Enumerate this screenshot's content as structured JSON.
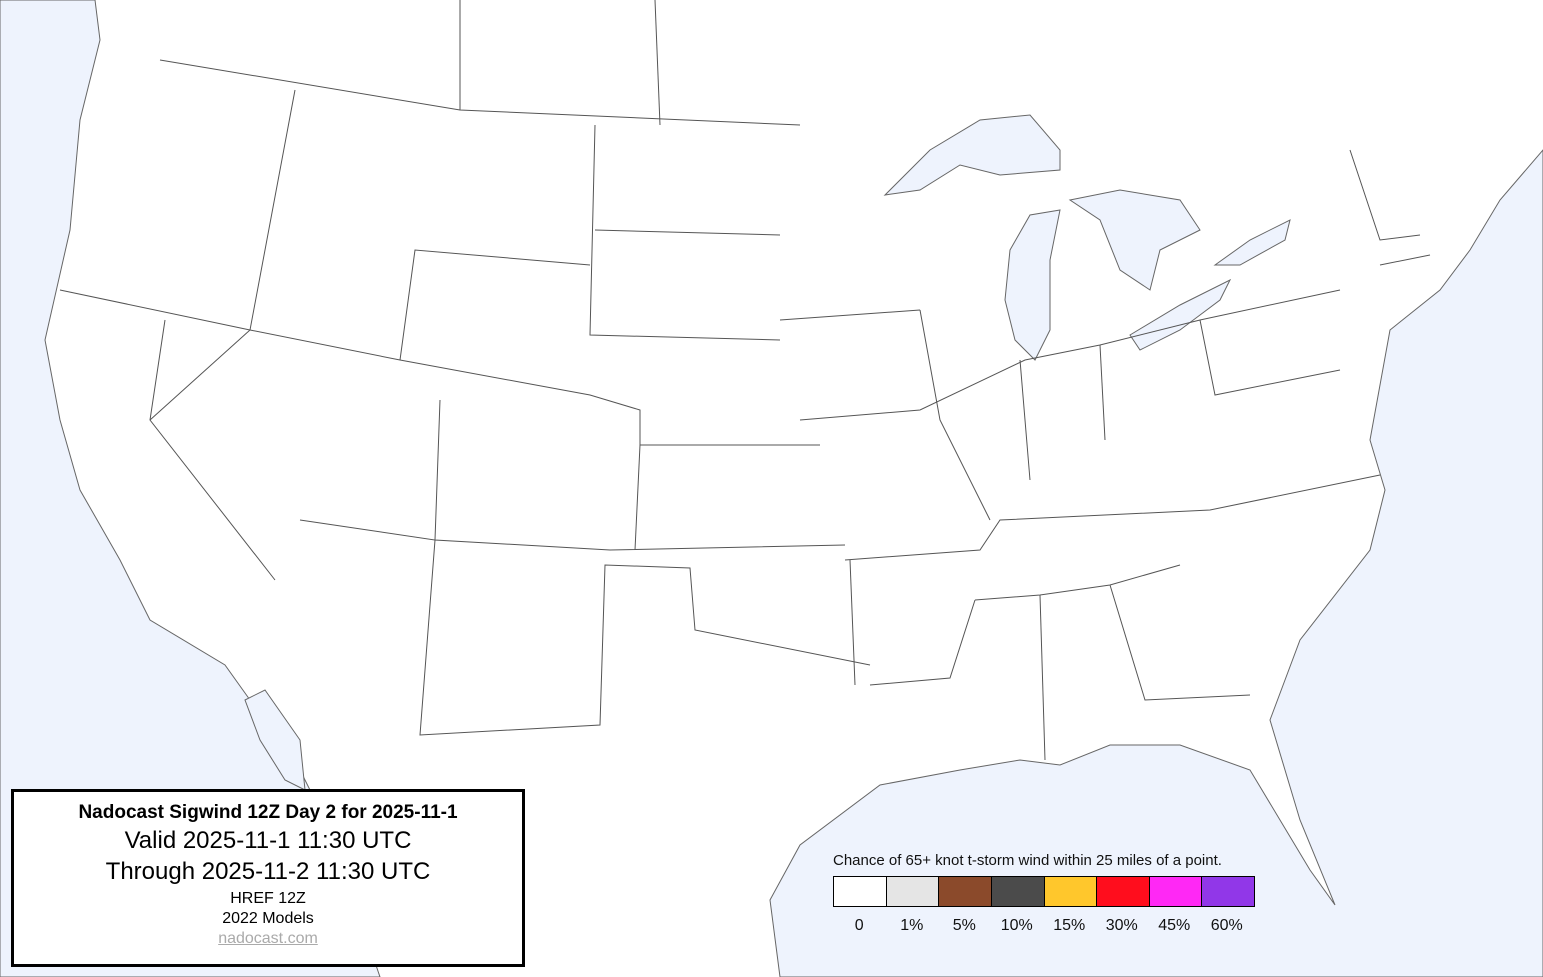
{
  "info_box": {
    "title": "Nadocast Sigwind 12Z Day 2 for 2025-11-1",
    "valid": "Valid 2025-11-1 11:30 UTC",
    "through": "Through 2025-11-2 11:30 UTC",
    "model": "HREF 12Z",
    "models_version": "2022 Models",
    "link": "nadocast.com"
  },
  "legend": {
    "caption": "Chance of 65+ knot t-storm wind within 25 miles of a point.",
    "bins": [
      {
        "label": "0",
        "color": "#ffffff"
      },
      {
        "label": "1%",
        "color": "#e5e5e5"
      },
      {
        "label": "5%",
        "color": "#8b4a2b"
      },
      {
        "label": "10%",
        "color": "#4b4b4b"
      },
      {
        "label": "15%",
        "color": "#ffc72c"
      },
      {
        "label": "30%",
        "color": "#ff0d1d"
      },
      {
        "label": "45%",
        "color": "#ff28f5"
      },
      {
        "label": "60%",
        "color": "#9137e8"
      }
    ]
  },
  "colors": {
    "water": "#eef3fd",
    "land": "#ffffff",
    "border": "#555555"
  }
}
